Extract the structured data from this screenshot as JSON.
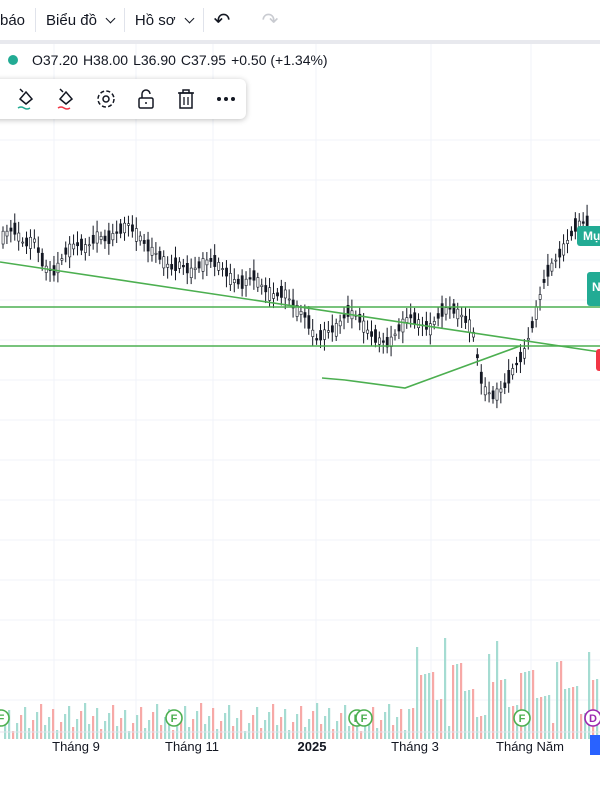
{
  "topbar": {
    "partial_label": "báo",
    "chart_menu": "Biểu đồ",
    "profile_menu": "Hồ sơ",
    "undo_icon": "undo-icon",
    "redo_icon": "redo-icon"
  },
  "legend": {
    "open": "O37.20",
    "high": "H38.00",
    "low": "L36.90",
    "close": "C37.95",
    "change": "+0.50 (+1.34%)"
  },
  "toolbar": {
    "icons": [
      "fill-line-icon",
      "fill-text-icon",
      "settings-gear-icon",
      "unlock-icon",
      "trash-icon",
      "more-dots-icon"
    ]
  },
  "tags": {
    "target": "Mụ",
    "green": "N"
  },
  "colors": {
    "up": "#22ab94",
    "down": "#f23645",
    "trendline": "#4caf50",
    "volume_up": "#a5dcd2",
    "volume_down": "#f7a9a7"
  },
  "chart_data": {
    "type": "candlestick",
    "x_tick_labels": [
      "Tháng 9",
      "Tháng 11",
      "2025",
      "Tháng 3",
      "Tháng Năm"
    ],
    "series": [
      {
        "name": "price",
        "values": [
          37.2,
          38.0,
          36.9,
          37.95
        ]
      }
    ],
    "price_path": [
      37.6,
      37.8,
      37.4,
      37.5,
      36.8,
      36.7,
      37.2,
      37.4,
      37.3,
      37.6,
      37.5,
      37.7,
      37.9,
      37.6,
      37.3,
      37.1,
      36.8,
      36.9,
      36.7,
      36.9,
      37.0,
      36.8,
      36.5,
      36.4,
      36.6,
      36.3,
      36.1,
      36.2,
      35.8,
      35.6,
      35.0,
      35.2,
      35.3,
      35.7,
      35.6,
      35.2,
      35.0,
      34.9,
      35.3,
      35.6,
      35.4,
      35.3,
      35.7,
      35.8,
      35.6,
      35.3,
      33.8,
      33.6,
      33.8,
      34.3,
      34.7,
      35.6,
      36.6,
      37.0,
      37.4,
      37.9,
      37.95
    ],
    "event_markers": [
      {
        "label": "F"
      },
      {
        "label": "F"
      },
      {
        "label": "F"
      },
      {
        "label": "F"
      },
      {
        "label": "D"
      }
    ],
    "grid": true
  }
}
